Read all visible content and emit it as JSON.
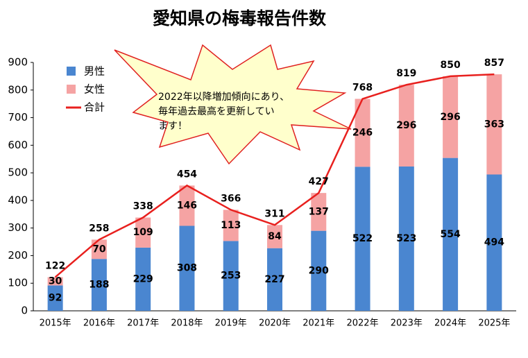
{
  "chart_data": {
    "type": "bar",
    "stacked": true,
    "title": "愛知県の梅毒報告件数",
    "categories": [
      "2015年",
      "2016年",
      "2017年",
      "2018年",
      "2019年",
      "2020年",
      "2021年",
      "2022年",
      "2023年",
      "2024年",
      "2025年"
    ],
    "series": [
      {
        "name": "男性",
        "color": "#4a86d0",
        "values": [
          92,
          188,
          229,
          308,
          253,
          227,
          290,
          522,
          523,
          554,
          494
        ]
      },
      {
        "name": "女性",
        "color": "#f5a3a3",
        "values": [
          30,
          70,
          109,
          146,
          113,
          84,
          137,
          246,
          296,
          296,
          363
        ]
      },
      {
        "name": "合計",
        "color": "#e8201e",
        "type": "line",
        "values": [
          122,
          258,
          338,
          454,
          366,
          311,
          427,
          768,
          819,
          850,
          857
        ]
      }
    ],
    "ylim": [
      0,
      900
    ],
    "yticks": [
      0,
      100,
      200,
      300,
      400,
      500,
      600,
      700,
      800,
      900
    ],
    "grid": false,
    "legend": "top-left",
    "annotation": [
      "2022年以降増加傾向にあり、",
      "毎年過去最高を更新してい",
      "ます！"
    ]
  }
}
